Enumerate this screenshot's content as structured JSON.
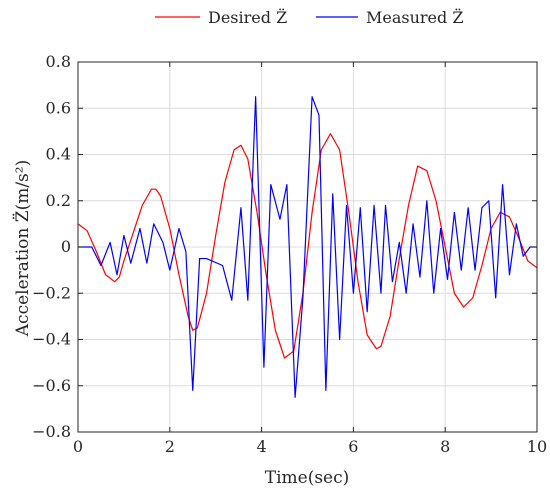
{
  "chart_data": {
    "type": "line",
    "xlabel": "Time(sec)",
    "ylabel": "Acceleration Z̈(m/s²)",
    "xlim": [
      0,
      10
    ],
    "ylim": [
      -0.8,
      0.8
    ],
    "xticks": [
      "0",
      "2",
      "4",
      "6",
      "8",
      "10"
    ],
    "yticks": [
      "0.8",
      "0.6",
      "0.4",
      "0.2",
      "0",
      "−0.2",
      "−0.4",
      "−0.6",
      "−0.8"
    ],
    "grid": true,
    "legend_position": "top-center",
    "series": [
      {
        "name": "Desired Z̈",
        "color": "#ff0000",
        "x": [
          0,
          0.2,
          0.4,
          0.6,
          0.8,
          0.9,
          1.0,
          1.2,
          1.4,
          1.6,
          1.7,
          1.8,
          2.0,
          2.2,
          2.4,
          2.5,
          2.6,
          2.8,
          3.0,
          3.2,
          3.4,
          3.55,
          3.7,
          3.9,
          4.1,
          4.3,
          4.5,
          4.7,
          4.9,
          5.1,
          5.3,
          5.5,
          5.7,
          5.9,
          6.1,
          6.3,
          6.5,
          6.6,
          6.8,
          7.0,
          7.2,
          7.4,
          7.6,
          7.8,
          8.0,
          8.2,
          8.4,
          8.6,
          8.8,
          9.0,
          9.2,
          9.4,
          9.6,
          9.8,
          10.0
        ],
        "y": [
          0.1,
          0.07,
          -0.02,
          -0.12,
          -0.15,
          -0.13,
          -0.06,
          0.06,
          0.18,
          0.25,
          0.25,
          0.22,
          0.08,
          -0.12,
          -0.3,
          -0.36,
          -0.35,
          -0.2,
          0.05,
          0.28,
          0.42,
          0.44,
          0.38,
          0.15,
          -0.12,
          -0.36,
          -0.48,
          -0.45,
          -0.2,
          0.15,
          0.42,
          0.49,
          0.42,
          0.15,
          -0.15,
          -0.38,
          -0.44,
          -0.43,
          -0.3,
          -0.05,
          0.18,
          0.35,
          0.33,
          0.2,
          0.0,
          -0.2,
          -0.26,
          -0.22,
          -0.08,
          0.08,
          0.15,
          0.13,
          0.04,
          -0.06,
          -0.09
        ]
      },
      {
        "name": "Measured Z̈",
        "color": "#0000ff",
        "x": [
          0,
          0.3,
          0.5,
          0.7,
          0.85,
          1.0,
          1.15,
          1.35,
          1.5,
          1.65,
          1.85,
          2.0,
          2.2,
          2.35,
          2.5,
          2.65,
          2.8,
          3.15,
          3.35,
          3.55,
          3.7,
          3.87,
          4.05,
          4.2,
          4.4,
          4.55,
          4.73,
          4.9,
          5.1,
          5.25,
          5.4,
          5.55,
          5.7,
          5.85,
          6.0,
          6.15,
          6.3,
          6.45,
          6.6,
          6.7,
          6.85,
          7.0,
          7.15,
          7.3,
          7.45,
          7.6,
          7.75,
          7.9,
          8.05,
          8.2,
          8.35,
          8.5,
          8.65,
          8.8,
          8.95,
          9.1,
          9.25,
          9.4,
          9.55,
          9.7,
          9.85,
          10.0
        ],
        "y": [
          0.0,
          0.0,
          -0.08,
          0.02,
          -0.12,
          0.05,
          -0.07,
          0.08,
          -0.07,
          0.1,
          0.02,
          -0.1,
          0.08,
          -0.02,
          -0.62,
          -0.05,
          -0.05,
          -0.08,
          -0.23,
          0.17,
          -0.23,
          0.65,
          -0.52,
          0.27,
          0.12,
          0.27,
          -0.65,
          -0.22,
          0.65,
          0.57,
          -0.62,
          0.23,
          -0.4,
          0.18,
          -0.2,
          0.17,
          -0.28,
          0.18,
          -0.2,
          0.18,
          -0.15,
          0.02,
          -0.2,
          0.1,
          -0.13,
          0.2,
          -0.2,
          0.08,
          -0.14,
          0.15,
          -0.1,
          0.17,
          -0.1,
          0.17,
          0.2,
          -0.22,
          0.27,
          -0.12,
          0.1,
          -0.04,
          0.0,
          0.0
        ]
      }
    ]
  }
}
